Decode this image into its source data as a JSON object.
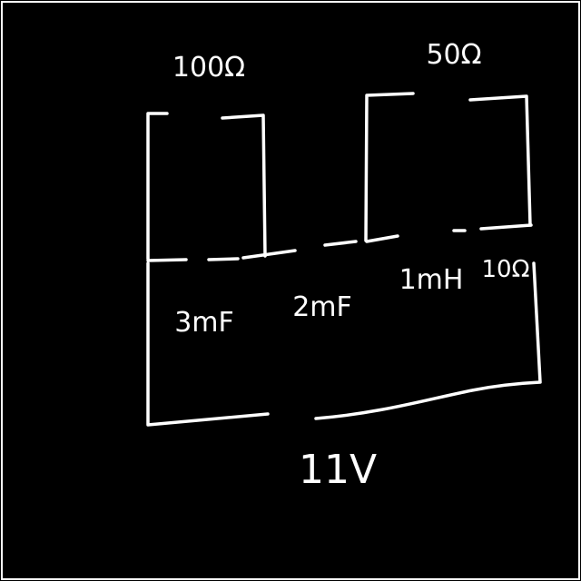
{
  "components": {
    "r_top_left": "100Ω",
    "r_top_right": "50Ω",
    "c_left": "3mF",
    "c_mid": "2mF",
    "inductor": "1mH",
    "r_right": "10Ω",
    "source": "11V"
  },
  "colors": {
    "background": "#000000",
    "ink": "#ffffff"
  }
}
